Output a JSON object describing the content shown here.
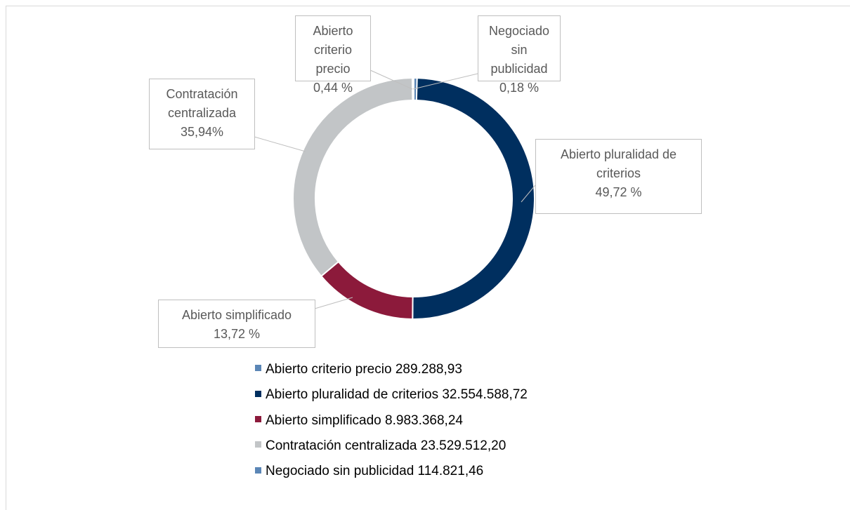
{
  "chart_data": {
    "type": "donut",
    "categories": [
      "Abierto criterio precio",
      "Abierto pluralidad de criterios",
      "Abierto simplificado",
      "Contratación centralizada",
      "Negociado sin publicidad"
    ],
    "values": [
      0.44,
      49.72,
      13.72,
      35.94,
      0.18
    ],
    "value_labels": [
      "0,44 %",
      "49,72 %",
      "13,72 %",
      "35,94%",
      "0,18 %"
    ],
    "amounts": [
      289288.93,
      32554588.72,
      8983368.24,
      23529512.2,
      114821.46
    ],
    "amount_labels": [
      "289.288,93",
      "32.554.588,72",
      "8.983.368,24",
      "23.529.512,20",
      "114.821,46"
    ],
    "colors": [
      "#5b86b6",
      "#002f5f",
      "#8c1a3b",
      "#c2c5c7",
      "#5b86b6"
    ],
    "legend": "bottom"
  }
}
